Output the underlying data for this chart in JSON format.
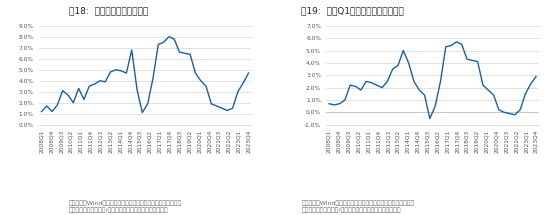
{
  "title1": "图18:  公募基金重仓家电比例",
  "title2": "图19:  历年Q1公募基金重仓家电比例",
  "source_text1": "数据来源：Wind，广发证券发展研究中心（重仓比例计算方法为\n家电个股重仓市值合计/公募基金全行业个股重仓市值合计）",
  "source_text2": "数据来源：Wind，广发证券发展研究中心（重仓比例计算方法为\n家电个股重仓市值合计/公募基金全行业个股重仓市值合计）",
  "line_color": "#1a5fa8",
  "line_width": 1.0,
  "bg_color": "#ffffff",
  "title_fontsize": 6.5,
  "tick_fontsize": 4.2,
  "source_fontsize": 4.5,
  "chart1_xlabels": [
    "2008Q1",
    "2008Q4",
    "2009Q3",
    "2010Q2",
    "2011Q1",
    "2011Q4",
    "2012Q3",
    "2013Q2",
    "2014Q1",
    "2014Q4",
    "2015Q3",
    "2016Q2",
    "2017Q1",
    "2017Q4",
    "2018Q3",
    "2019Q2",
    "2020Q1",
    "2020Q4",
    "2021Q3",
    "2022Q2",
    "2023Q1",
    "2023Q4"
  ],
  "chart1_values": [
    1.2,
    1.7,
    1.2,
    1.8,
    3.1,
    2.7,
    2.0,
    3.3,
    2.3,
    3.5,
    3.7,
    4.0,
    3.9,
    4.8,
    5.0,
    4.9,
    4.7,
    6.8,
    3.2,
    1.1,
    1.9,
    4.2,
    7.3,
    7.5,
    8.0,
    7.8,
    6.6,
    6.5,
    6.4,
    4.7,
    4.0,
    3.5,
    1.9,
    1.7,
    1.5,
    1.3,
    1.5,
    3.0,
    3.8,
    4.7
  ],
  "chart1_n_labels": 22,
  "chart1_ylim": [
    0.0,
    9.0
  ],
  "chart1_yticks": [
    0.0,
    1.0,
    2.0,
    3.0,
    4.0,
    5.0,
    6.0,
    7.0,
    8.0,
    9.0
  ],
  "chart1_ytick_labels": [
    "0.0%",
    "1.0%",
    "2.0%",
    "3.0%",
    "4.0%",
    "5.0%",
    "6.0%",
    "7.0%",
    "8.0%",
    "9.0%"
  ],
  "chart2_xlabels": [
    "2008Q1",
    "2008Q4",
    "2009Q3",
    "2010Q2",
    "2011Q1",
    "2011Q4",
    "2012Q3",
    "2013Q2",
    "2014Q1",
    "2014Q4",
    "2015Q3",
    "2016Q2",
    "2017Q1",
    "2017Q4",
    "2018Q3",
    "2019Q2",
    "2020Q1",
    "2020Q4",
    "2021Q3",
    "2022Q2",
    "2023Q1",
    "2023Q4"
  ],
  "chart2_values": [
    0.7,
    0.6,
    0.7,
    1.0,
    2.2,
    2.1,
    1.8,
    2.5,
    2.4,
    2.2,
    2.0,
    2.5,
    3.5,
    3.8,
    5.0,
    4.0,
    2.5,
    1.8,
    1.4,
    -0.5,
    0.5,
    2.5,
    5.3,
    5.4,
    5.7,
    5.5,
    4.3,
    4.2,
    4.1,
    2.2,
    1.8,
    1.4,
    0.2,
    0.0,
    -0.1,
    -0.2,
    0.2,
    1.5,
    2.3,
    2.9
  ],
  "chart2_n_labels": 22,
  "chart2_ylim": [
    -1.0,
    7.0
  ],
  "chart2_yticks": [
    -1.0,
    0.0,
    1.0,
    2.0,
    3.0,
    4.0,
    5.0,
    6.0,
    7.0
  ],
  "chart2_ytick_labels": [
    "-1.0%",
    "0.0%",
    "1.0%",
    "2.0%",
    "3.0%",
    "4.0%",
    "5.0%",
    "6.0%",
    "7.0%"
  ]
}
